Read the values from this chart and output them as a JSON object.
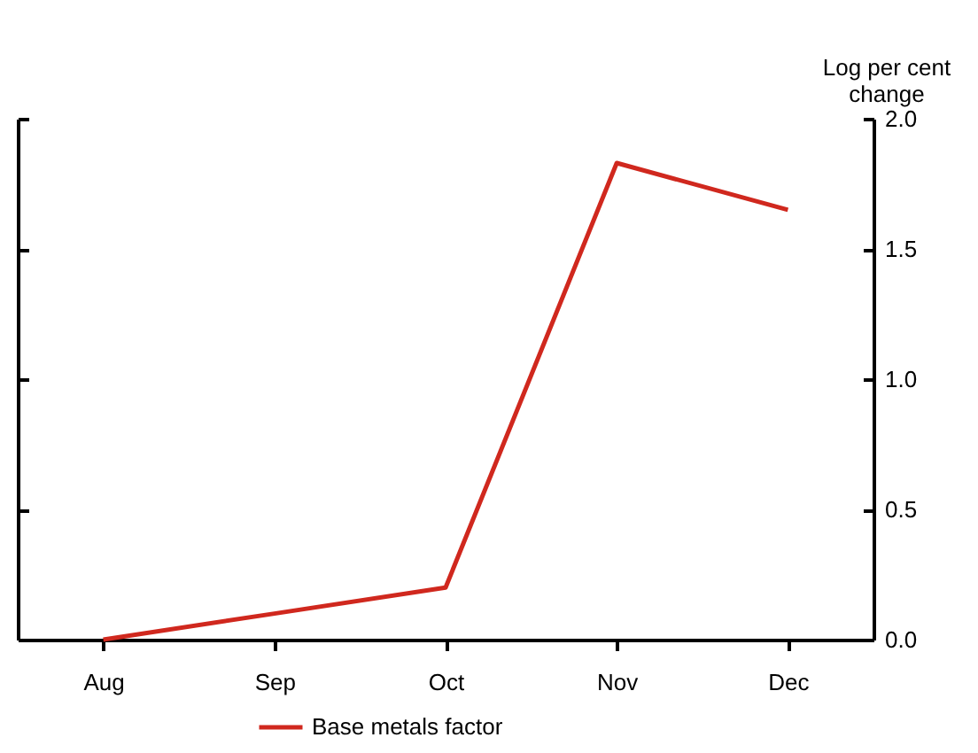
{
  "chart_data": {
    "type": "line",
    "ylabel": "Log per cent change",
    "categories": [
      "Aug",
      "Sep",
      "Oct",
      "Nov",
      "Dec"
    ],
    "series": [
      {
        "name": "Base metals factor",
        "color": "#d0281e",
        "values": [
          0,
          0.1,
          0.2,
          1.83,
          1.65
        ]
      }
    ],
    "ylim": [
      0,
      2.0
    ],
    "yticks": [
      {
        "value": 0,
        "label": "0.0"
      },
      {
        "value": 0.5,
        "label": "0.5"
      },
      {
        "value": 1,
        "label": "1.0"
      },
      {
        "value": 1.5,
        "label": "1.5"
      },
      {
        "value": 2,
        "label": "2.0"
      }
    ],
    "grid": false,
    "legend": "bottom",
    "marker": "none",
    "line_style": "solid"
  }
}
